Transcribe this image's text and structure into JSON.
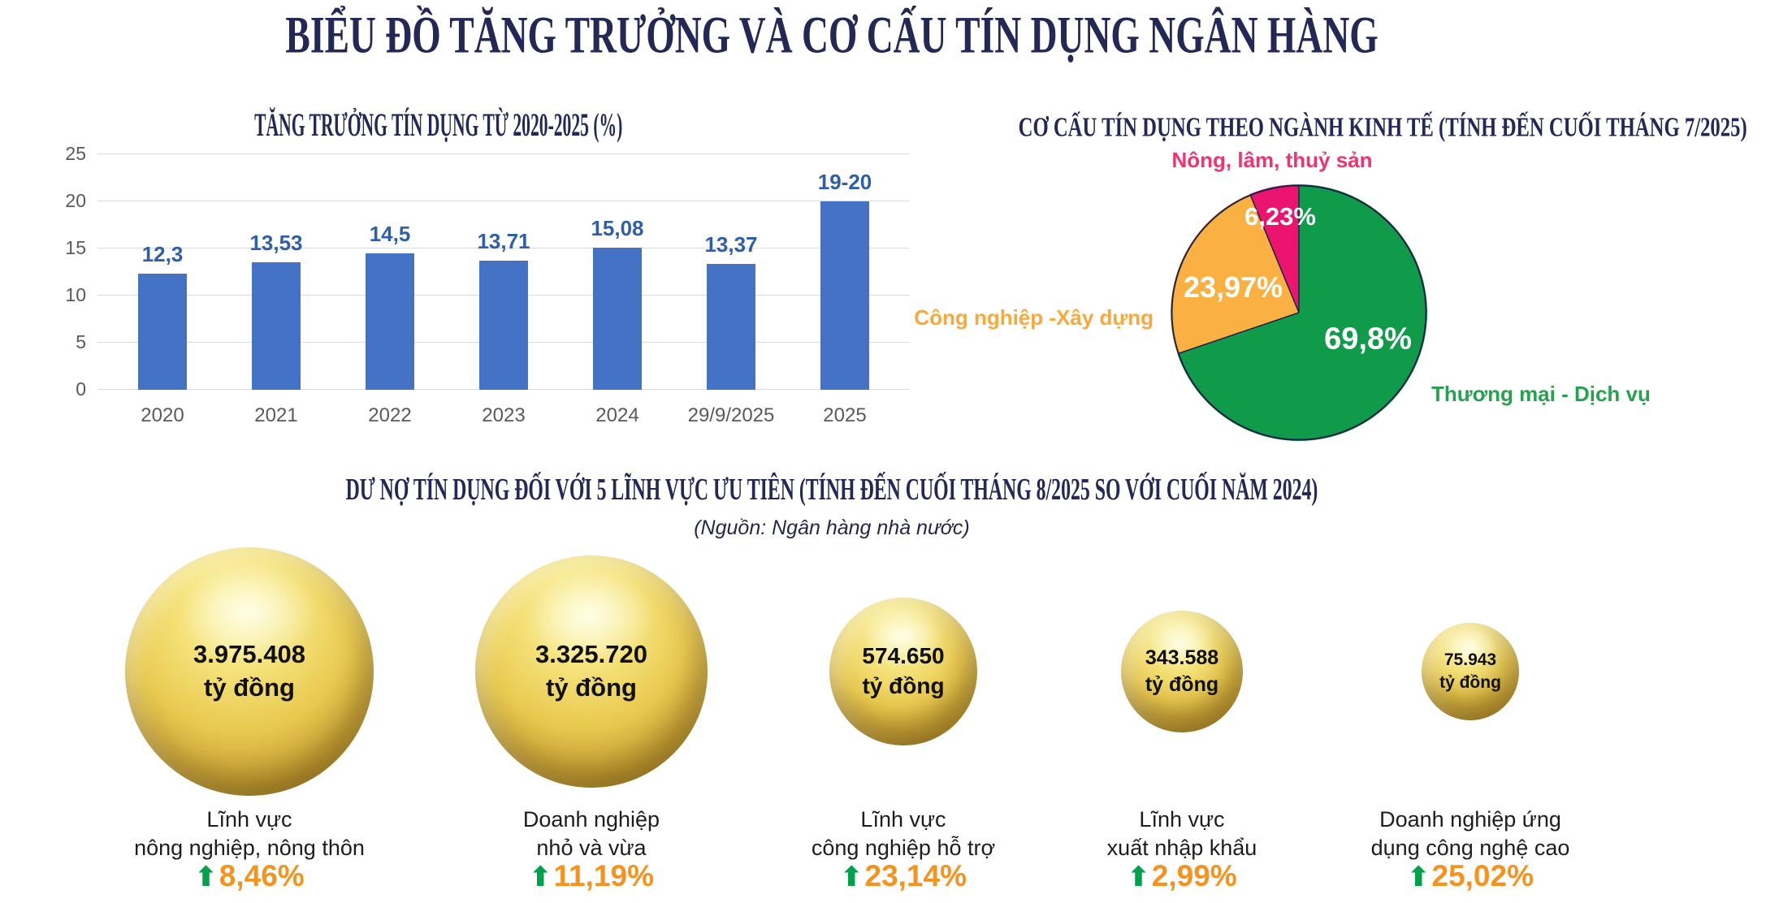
{
  "page": {
    "title": "BIỂU ĐỒ TĂNG TRƯỞNG VÀ CƠ CẤU TÍN DỤNG NGÂN HÀNG"
  },
  "icons": {
    "up_arrow_glyph": "⬆"
  },
  "chart_data": [
    {
      "type": "bar",
      "title": "TĂNG TRƯỞNG TÍN DỤNG TỪ 2020-2025 (%)",
      "categories": [
        "2020",
        "2021",
        "2022",
        "2023",
        "2024",
        "29/9/2025",
        "2025"
      ],
      "values": [
        12.3,
        13.53,
        14.5,
        13.71,
        15.08,
        13.37,
        20
      ],
      "value_labels": [
        "12,3",
        "13,53",
        "14,5",
        "13,71",
        "15,08",
        "13,37",
        "19-20"
      ],
      "ylim": [
        0,
        25
      ],
      "yticks": [
        0,
        5,
        10,
        15,
        20,
        25
      ],
      "grid": true,
      "legend": "none",
      "bar_color": "#4472C4",
      "value_label_color": "#2E5FA8"
    },
    {
      "type": "pie",
      "title": "CƠ CẤU TÍN DỤNG THEO NGÀNH KINH TẾ (TÍNH ĐẾN CUỐI THÁNG 7/2025)",
      "start_angle_deg": 0,
      "direction": "clockwise",
      "slices": [
        {
          "label": "Thương mại - Dịch vụ",
          "value": 69.8,
          "display": "69,8%",
          "color": "#109B4B",
          "label_color": "#27a14f"
        },
        {
          "label": "Công nghiệp -Xây dựng",
          "value": 23.97,
          "display": "23,97%",
          "color": "#FBB042",
          "label_color": "#f9a93c"
        },
        {
          "label": "Nông, lâm, thuỷ sản",
          "value": 6.23,
          "display": "6,23%",
          "color": "#EB146E",
          "label_color": "#f2336f"
        }
      ],
      "outline_color": "#1e2248"
    },
    {
      "type": "bubble",
      "title": "DƯ NỢ TÍN DỤNG ĐỐI VỚI 5 LĨNH VỰC ƯU TIÊN (TÍNH ĐẾN CUỐI THÁNG 8/2025 SO VỚI CUỐI NĂM 2024)",
      "source": "(Nguồn: Ngân hàng nhà nước)",
      "unit": "tỷ đồng",
      "items": [
        {
          "value": "3.975.408",
          "unit": "tỷ đồng",
          "label_lines": [
            "Lĩnh vực",
            "nông nghiệp, nông thôn"
          ],
          "growth": "8,46%"
        },
        {
          "value": "3.325.720",
          "unit": "tỷ đồng",
          "label_lines": [
            "Doanh nghiệp",
            "nhỏ và vừa"
          ],
          "growth": "11,19%"
        },
        {
          "value": "574.650",
          "unit": "tỷ đồng",
          "label_lines": [
            "Lĩnh vực",
            "công nghiệp hỗ trợ"
          ],
          "growth": "23,14%"
        },
        {
          "value": "343.588",
          "unit": "tỷ đồng",
          "label_lines": [
            "Lĩnh vực",
            "xuất nhập khẩu"
          ],
          "growth": "2,99%"
        },
        {
          "value": "75.943",
          "unit": "tỷ đồng",
          "label_lines": [
            "Doanh nghiệp ứng",
            "dụng công nghệ cao"
          ],
          "growth": "25,02%"
        }
      ]
    }
  ]
}
